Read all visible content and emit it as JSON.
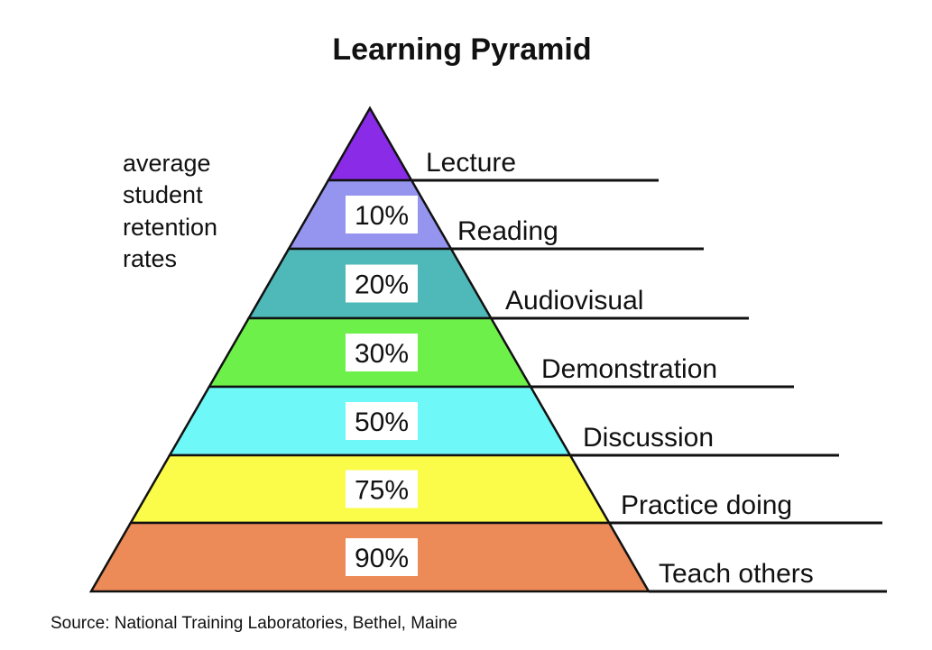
{
  "title": "Learning Pyramid",
  "side_note": [
    "average",
    "student",
    "retention",
    "rates"
  ],
  "source": "Source: National Training Laboratories, Bethel, Maine",
  "levels": [
    {
      "label": "Lecture",
      "percent": "",
      "color": "#8a2be8"
    },
    {
      "label": "Reading",
      "percent": "10%",
      "color": "#9595f0"
    },
    {
      "label": "Audiovisual",
      "percent": "20%",
      "color": "#4fb8b8"
    },
    {
      "label": "Demonstration",
      "percent": "30%",
      "color": "#6ef04a"
    },
    {
      "label": "Discussion",
      "percent": "50%",
      "color": "#6ef8f8"
    },
    {
      "label": "Practice doing",
      "percent": "75%",
      "color": "#fbfb4a"
    },
    {
      "label": "Teach others",
      "percent": "90%",
      "color": "#ec8a58"
    }
  ]
}
